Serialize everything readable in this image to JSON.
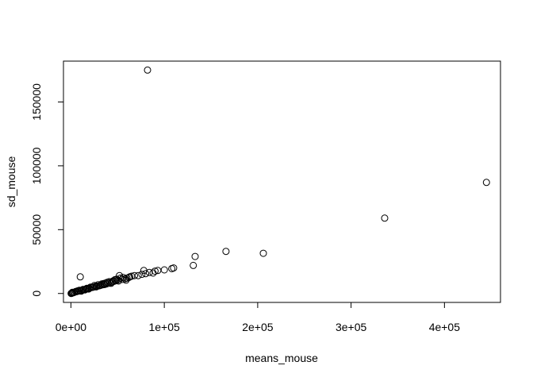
{
  "chart_data": {
    "type": "scatter",
    "title": "",
    "xlabel": "means_mouse",
    "ylabel": "sd_mouse",
    "xlim": [
      -8000,
      460000
    ],
    "ylim": [
      -7000,
      182000
    ],
    "x_ticks": [
      0,
      100000,
      200000,
      300000,
      400000
    ],
    "x_tick_labels": [
      "0e+00",
      "1e+05",
      "2e+05",
      "3e+05",
      "4e+05"
    ],
    "y_ticks": [
      0,
      50000,
      100000,
      150000
    ],
    "y_tick_labels": [
      "0",
      "50000",
      "100000",
      "150000"
    ],
    "grid": false,
    "legend": "none",
    "points": [
      [
        82000,
        175000
      ],
      [
        445000,
        87000
      ],
      [
        336000,
        59000
      ],
      [
        166000,
        33000
      ],
      [
        206000,
        31500
      ],
      [
        133000,
        29000
      ],
      [
        131000,
        22000
      ],
      [
        110000,
        20000
      ],
      [
        108000,
        19500
      ],
      [
        100000,
        18500
      ],
      [
        93000,
        18000
      ],
      [
        90000,
        17500
      ],
      [
        88000,
        16000
      ],
      [
        84000,
        16500
      ],
      [
        78000,
        18000
      ],
      [
        80000,
        15500
      ],
      [
        76000,
        15000
      ],
      [
        72000,
        14000
      ],
      [
        68000,
        14000
      ],
      [
        65000,
        13500
      ],
      [
        62000,
        12500
      ],
      [
        60000,
        12000
      ],
      [
        58000,
        11500
      ],
      [
        55000,
        11000
      ],
      [
        52000,
        14000
      ],
      [
        50000,
        10500
      ],
      [
        48000,
        10000
      ],
      [
        46000,
        9500
      ],
      [
        44000,
        9000
      ],
      [
        42000,
        8500
      ],
      [
        40000,
        8000
      ],
      [
        38000,
        7500
      ],
      [
        36000,
        7000
      ],
      [
        34000,
        6800
      ],
      [
        32000,
        6500
      ],
      [
        30000,
        6000
      ],
      [
        28000,
        5800
      ],
      [
        26000,
        5500
      ],
      [
        24000,
        5000
      ],
      [
        22000,
        4600
      ],
      [
        20000,
        4200
      ],
      [
        18000,
        3800
      ],
      [
        16000,
        3400
      ],
      [
        14000,
        3000
      ],
      [
        12000,
        2600
      ],
      [
        10000,
        13000
      ],
      [
        10000,
        2200
      ],
      [
        8000,
        1800
      ],
      [
        6000,
        1400
      ],
      [
        4000,
        1000
      ],
      [
        3000,
        700
      ],
      [
        2000,
        500
      ],
      [
        1000,
        300
      ],
      [
        500,
        100
      ],
      [
        200,
        50
      ],
      [
        1500,
        900
      ],
      [
        5000,
        1500
      ],
      [
        7000,
        2000
      ],
      [
        9000,
        2500
      ],
      [
        11000,
        1800
      ],
      [
        13000,
        3200
      ],
      [
        15000,
        2800
      ],
      [
        17000,
        4000
      ],
      [
        19000,
        3500
      ],
      [
        21000,
        5000
      ],
      [
        23000,
        4800
      ],
      [
        25000,
        6200
      ],
      [
        27000,
        5200
      ],
      [
        29000,
        6800
      ],
      [
        31000,
        6200
      ],
      [
        33000,
        7400
      ],
      [
        35000,
        7800
      ],
      [
        37000,
        8200
      ],
      [
        39000,
        8800
      ],
      [
        41000,
        9200
      ],
      [
        43000,
        8000
      ],
      [
        45000,
        9800
      ],
      [
        47000,
        10800
      ],
      [
        49000,
        11200
      ],
      [
        51000,
        9800
      ],
      [
        53000,
        12000
      ],
      [
        56000,
        12500
      ],
      [
        59000,
        10500
      ],
      [
        63000,
        13000
      ]
    ]
  }
}
